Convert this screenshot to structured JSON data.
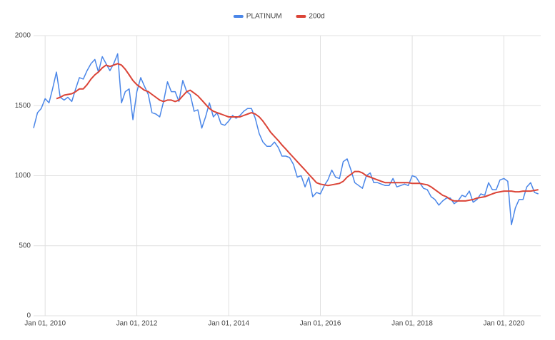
{
  "chart_data": {
    "type": "line",
    "x": [
      "2009-10-01",
      "2009-11-01",
      "2009-12-01",
      "2010-01-01",
      "2010-02-01",
      "2010-03-01",
      "2010-04-01",
      "2010-05-01",
      "2010-06-01",
      "2010-07-01",
      "2010-08-01",
      "2010-09-01",
      "2010-10-01",
      "2010-11-01",
      "2010-12-01",
      "2011-01-01",
      "2011-02-01",
      "2011-03-01",
      "2011-04-01",
      "2011-05-01",
      "2011-06-01",
      "2011-07-01",
      "2011-08-01",
      "2011-09-01",
      "2011-10-01",
      "2011-11-01",
      "2011-12-01",
      "2012-01-01",
      "2012-02-01",
      "2012-03-01",
      "2012-04-01",
      "2012-05-01",
      "2012-06-01",
      "2012-07-01",
      "2012-08-01",
      "2012-09-01",
      "2012-10-01",
      "2012-11-01",
      "2012-12-01",
      "2013-01-01",
      "2013-02-01",
      "2013-03-01",
      "2013-04-01",
      "2013-05-01",
      "2013-06-01",
      "2013-07-01",
      "2013-08-01",
      "2013-09-01",
      "2013-10-01",
      "2013-11-01",
      "2013-12-01",
      "2014-01-01",
      "2014-02-01",
      "2014-03-01",
      "2014-04-01",
      "2014-05-01",
      "2014-06-01",
      "2014-07-01",
      "2014-08-01",
      "2014-09-01",
      "2014-10-01",
      "2014-11-01",
      "2014-12-01",
      "2015-01-01",
      "2015-02-01",
      "2015-03-01",
      "2015-04-01",
      "2015-05-01",
      "2015-06-01",
      "2015-07-01",
      "2015-08-01",
      "2015-09-01",
      "2015-10-01",
      "2015-11-01",
      "2015-12-01",
      "2016-01-01",
      "2016-02-01",
      "2016-03-01",
      "2016-04-01",
      "2016-05-01",
      "2016-06-01",
      "2016-07-01",
      "2016-08-01",
      "2016-09-01",
      "2016-10-01",
      "2016-11-01",
      "2016-12-01",
      "2017-01-01",
      "2017-02-01",
      "2017-03-01",
      "2017-04-01",
      "2017-05-01",
      "2017-06-01",
      "2017-07-01",
      "2017-08-01",
      "2017-09-01",
      "2017-10-01",
      "2017-11-01",
      "2017-12-01",
      "2018-01-01",
      "2018-02-01",
      "2018-03-01",
      "2018-04-01",
      "2018-05-01",
      "2018-06-01",
      "2018-07-01",
      "2018-08-01",
      "2018-09-01",
      "2018-10-01",
      "2018-11-01",
      "2018-12-01",
      "2019-01-01",
      "2019-02-01",
      "2019-03-01",
      "2019-04-01",
      "2019-05-01",
      "2019-06-01",
      "2019-07-01",
      "2019-08-01",
      "2019-09-01",
      "2019-10-01",
      "2019-11-01",
      "2019-12-01",
      "2020-01-01",
      "2020-02-01",
      "2020-03-01",
      "2020-04-01",
      "2020-05-01",
      "2020-06-01",
      "2020-07-01",
      "2020-08-01",
      "2020-09-01",
      "2020-10-01"
    ],
    "series": [
      {
        "name": "PLATINUM",
        "color": "#4a86e8",
        "values": [
          1340,
          1450,
          1480,
          1550,
          1520,
          1620,
          1740,
          1560,
          1540,
          1560,
          1530,
          1620,
          1700,
          1690,
          1750,
          1800,
          1830,
          1740,
          1850,
          1800,
          1750,
          1800,
          1870,
          1520,
          1600,
          1620,
          1400,
          1600,
          1700,
          1640,
          1580,
          1450,
          1440,
          1420,
          1530,
          1670,
          1600,
          1600,
          1530,
          1680,
          1600,
          1580,
          1460,
          1470,
          1340,
          1420,
          1520,
          1420,
          1450,
          1370,
          1360,
          1390,
          1430,
          1410,
          1430,
          1460,
          1480,
          1480,
          1410,
          1300,
          1240,
          1210,
          1210,
          1240,
          1200,
          1140,
          1140,
          1130,
          1080,
          990,
          1000,
          920,
          990,
          850,
          880,
          870,
          930,
          970,
          1040,
          990,
          980,
          1100,
          1120,
          1040,
          950,
          930,
          910,
          1000,
          1020,
          950,
          950,
          940,
          930,
          930,
          980,
          920,
          930,
          940,
          930,
          1000,
          990,
          950,
          910,
          900,
          850,
          830,
          790,
          820,
          840,
          840,
          800,
          820,
          860,
          850,
          890,
          810,
          830,
          870,
          860,
          950,
          900,
          900,
          970,
          980,
          960,
          650,
          770,
          830,
          830,
          920,
          950,
          880,
          870
        ]
      },
      {
        "name": "200d",
        "color": "#db4437",
        "values": [
          null,
          null,
          null,
          null,
          null,
          null,
          1550,
          1560,
          1575,
          1580,
          1585,
          1600,
          1620,
          1620,
          1650,
          1690,
          1720,
          1740,
          1770,
          1790,
          1780,
          1790,
          1800,
          1790,
          1760,
          1720,
          1680,
          1650,
          1630,
          1610,
          1600,
          1580,
          1560,
          1540,
          1530,
          1540,
          1540,
          1530,
          1540,
          1570,
          1600,
          1610,
          1590,
          1570,
          1540,
          1510,
          1480,
          1460,
          1450,
          1440,
          1430,
          1420,
          1420,
          1420,
          1420,
          1430,
          1440,
          1450,
          1440,
          1420,
          1390,
          1350,
          1310,
          1280,
          1250,
          1220,
          1190,
          1160,
          1130,
          1100,
          1070,
          1040,
          1010,
          980,
          950,
          940,
          935,
          930,
          935,
          940,
          945,
          960,
          990,
          1010,
          1030,
          1030,
          1020,
          1000,
          990,
          980,
          970,
          960,
          950,
          950,
          950,
          950,
          950,
          950,
          950,
          945,
          945,
          945,
          940,
          935,
          920,
          900,
          880,
          860,
          850,
          830,
          820,
          820,
          820,
          820,
          825,
          830,
          840,
          845,
          850,
          860,
          870,
          880,
          885,
          890,
          890,
          890,
          885,
          885,
          890,
          890,
          890,
          895,
          900
        ]
      }
    ],
    "xlim": [
      "2009-10-01",
      "2020-10-20"
    ],
    "xticks": [
      {
        "value": "2010-01-01",
        "label": "Jan 01, 2010"
      },
      {
        "value": "2012-01-01",
        "label": "Jan 01, 2012"
      },
      {
        "value": "2014-01-01",
        "label": "Jan 01, 2014"
      },
      {
        "value": "2016-01-01",
        "label": "Jan 01, 2016"
      },
      {
        "value": "2018-01-01",
        "label": "Jan 01, 2018"
      },
      {
        "value": "2020-01-01",
        "label": "Jan 01, 2020"
      }
    ],
    "ylim": [
      0,
      2000
    ],
    "yticks": [
      0,
      500,
      1000,
      1500,
      2000
    ],
    "grid": true,
    "legend": "top"
  }
}
